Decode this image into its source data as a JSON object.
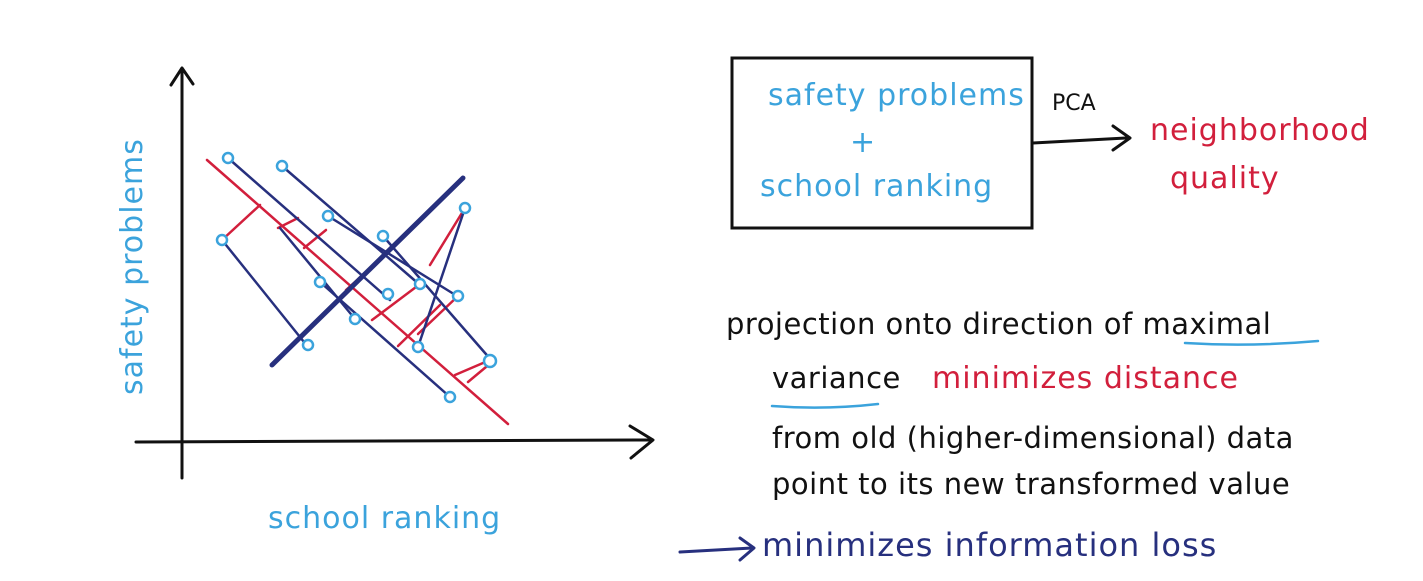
{
  "plot": {
    "y_axis_label": "safety problems",
    "x_axis_label": "school ranking"
  },
  "box": {
    "line1": "safety problems",
    "plus": "+",
    "line2": "school ranking"
  },
  "arrow_label": "PCA",
  "output": {
    "line1": "neighborhood",
    "line2": "quality"
  },
  "text": {
    "line1_a": "projection onto direction of ",
    "line1_b": "maximal",
    "line2_a": "variance",
    "line2_b": "minimizes distance",
    "line3": "from old (higher-dimensional) data",
    "line4": "point to its new transformed value",
    "line5": "minimizes information loss"
  },
  "colors": {
    "blue": "#3ba3dc",
    "red": "#d21f3c",
    "navy": "#27307e",
    "black": "#111111"
  }
}
